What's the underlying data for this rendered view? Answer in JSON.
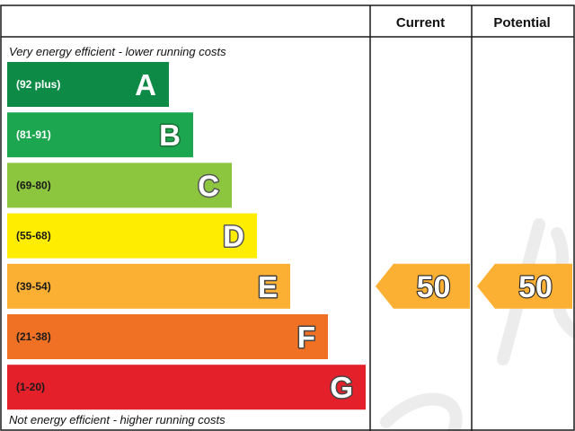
{
  "chart_data": {
    "type": "bar",
    "columns": {
      "current": "Current",
      "potential": "Potential"
    },
    "top_caption": "Very energy efficient - lower running costs",
    "bottom_caption": "Not energy efficient - higher running costs",
    "bands": [
      {
        "letter": "A",
        "range": "(92 plus)",
        "min": 92,
        "color": "#0d8a46",
        "range_color": "#ffffff",
        "letter_fill": "#ffffff",
        "letter_stroke": "#0d8a46"
      },
      {
        "letter": "B",
        "range": "(81-91)",
        "min": 81,
        "color": "#1da650",
        "range_color": "#ffffff",
        "letter_fill": "#ffffff",
        "letter_stroke": "#1b6f35"
      },
      {
        "letter": "C",
        "range": "(69-80)",
        "min": 69,
        "color": "#8cc63e",
        "range_color": "#1a1a1a",
        "letter_fill": "#ffffff",
        "letter_stroke": "#555555"
      },
      {
        "letter": "D",
        "range": "(55-68)",
        "min": 55,
        "color": "#ffed00",
        "range_color": "#1a1a1a",
        "letter_fill": "#ffffff",
        "letter_stroke": "#555555"
      },
      {
        "letter": "E",
        "range": "(39-54)",
        "min": 39,
        "color": "#fbb034",
        "range_color": "#1a1a1a",
        "letter_fill": "#ffffff",
        "letter_stroke": "#444444"
      },
      {
        "letter": "F",
        "range": "(21-38)",
        "min": 21,
        "color": "#f07123",
        "range_color": "#1a1a1a",
        "letter_fill": "#ffffff",
        "letter_stroke": "#444444"
      },
      {
        "letter": "G",
        "range": "(1-20)",
        "min": 1,
        "color": "#e4202a",
        "range_color": "#1a1a1a",
        "letter_fill": "#ffffff",
        "letter_stroke": "#444444"
      }
    ],
    "current": {
      "value": 50,
      "band": "E",
      "color": "#fbb034"
    },
    "potential": {
      "value": 50,
      "band": "E",
      "color": "#fbb034"
    }
  }
}
